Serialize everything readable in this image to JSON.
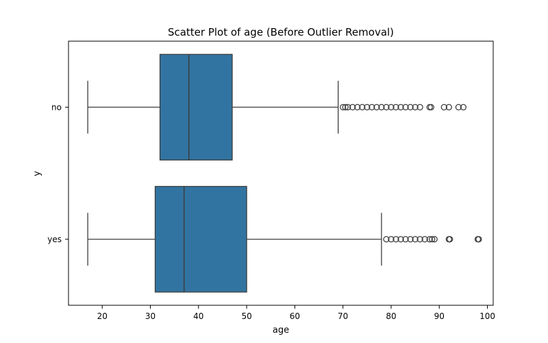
{
  "chart_data": {
    "type": "box",
    "title": "Scatter Plot of age (Before Outlier Removal)",
    "xlabel": "age",
    "ylabel": "y",
    "xlim": [
      13,
      101.2
    ],
    "xticks": [
      20,
      30,
      40,
      50,
      60,
      70,
      80,
      90,
      100
    ],
    "categories": [
      "no",
      "yes"
    ],
    "color": "#3274a1",
    "outline_color": "#3d3d3d",
    "boxes": [
      {
        "category": "no",
        "whisker_low": 17,
        "q1": 32,
        "median": 38,
        "q3": 47,
        "whisker_high": 69,
        "outliers": [
          70,
          70.5,
          71,
          72,
          73,
          74,
          75,
          76,
          77,
          78,
          79,
          80,
          81,
          82,
          83,
          84,
          85,
          86,
          88,
          88.3,
          91,
          92,
          94,
          95
        ]
      },
      {
        "category": "yes",
        "whisker_low": 17,
        "q1": 31,
        "median": 37,
        "q3": 50,
        "whisker_high": 78,
        "outliers": [
          79,
          80,
          81,
          82,
          83,
          84,
          85,
          86,
          87,
          88,
          88.5,
          89,
          92,
          92.2,
          98,
          98.2
        ]
      }
    ],
    "grid": false,
    "legend": "none"
  }
}
